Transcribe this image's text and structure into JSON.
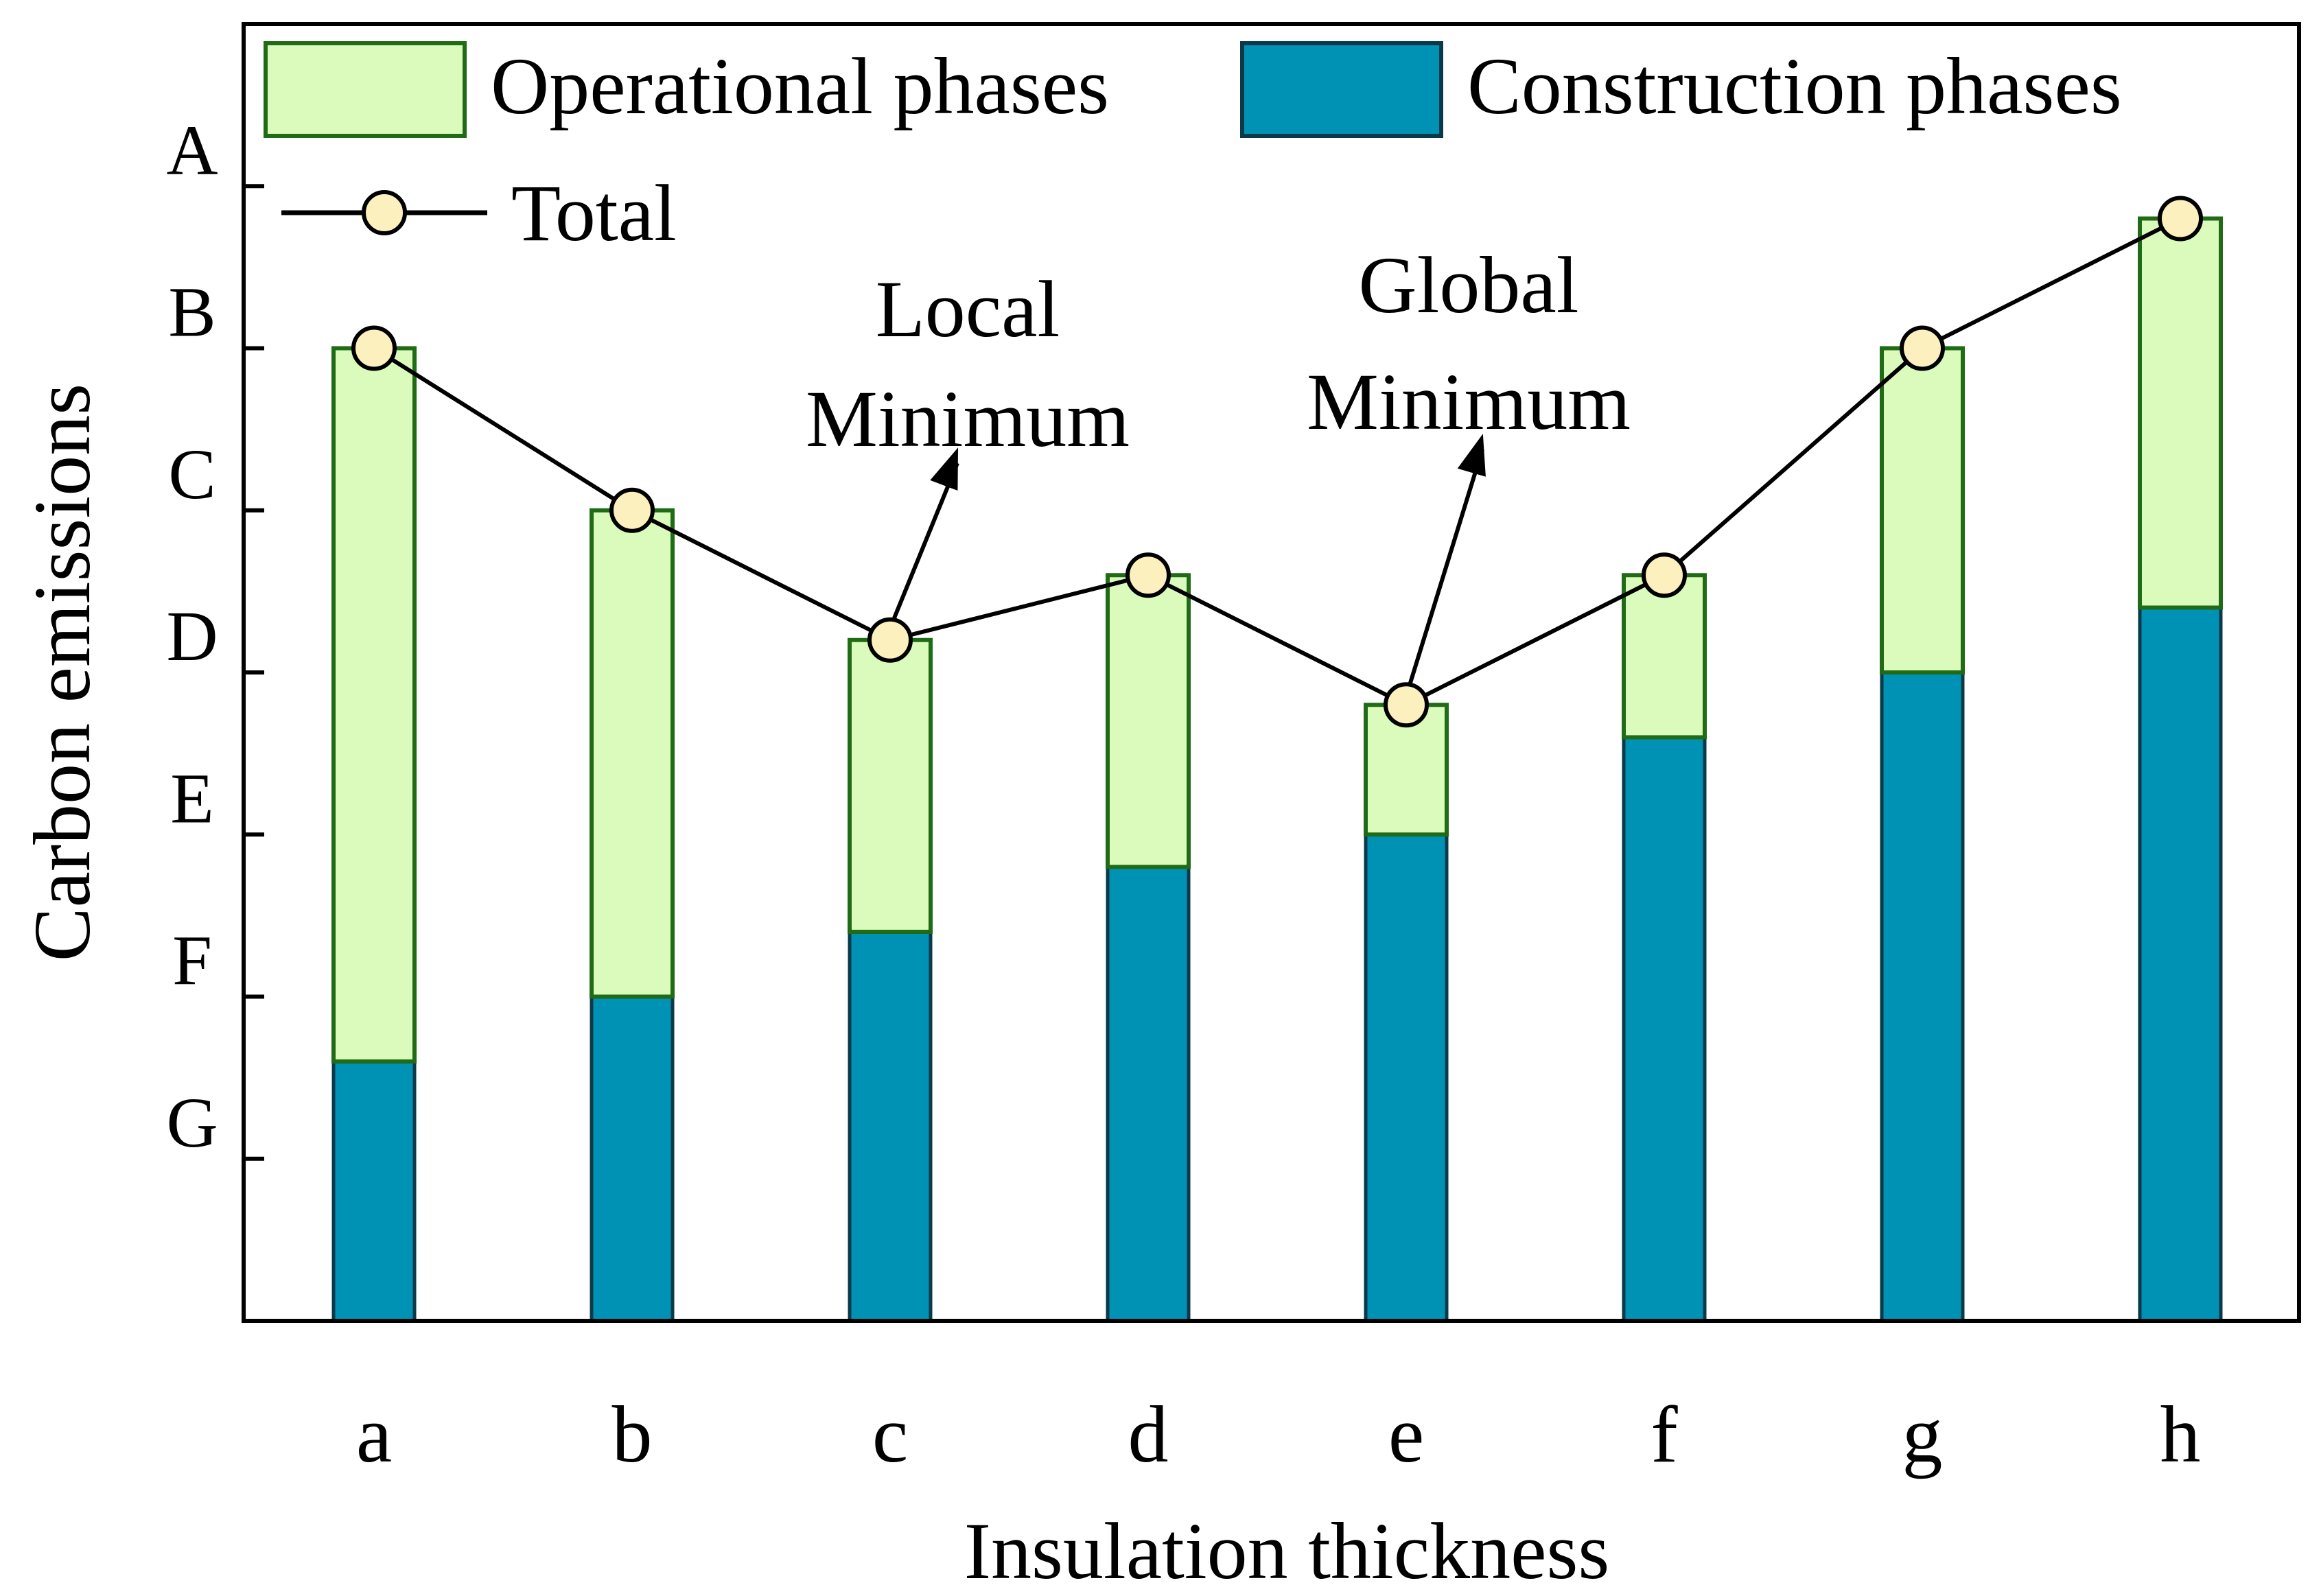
{
  "colors": {
    "operational_fill": "#dafbbc",
    "operational_stroke": "#1f6b16",
    "construction_fill": "#0092b4",
    "construction_stroke": "#0a3a4a",
    "total_line": "#000000",
    "total_marker_fill": "#fdf0bf",
    "axis": "#000000",
    "background": "#ffffff"
  },
  "chart_data": {
    "type": "bar",
    "stacked": true,
    "xlabel": "Insulation thickness",
    "ylabel": "Carbon emissions",
    "categories": [
      "a",
      "b",
      "c",
      "d",
      "e",
      "f",
      "g",
      "h"
    ],
    "ylim": [
      -1,
      7
    ],
    "y_ticks": [
      {
        "value": 6,
        "label": "A"
      },
      {
        "value": 5,
        "label": "B"
      },
      {
        "value": 4,
        "label": "C"
      },
      {
        "value": 3,
        "label": "D"
      },
      {
        "value": 2,
        "label": "E"
      },
      {
        "value": 1,
        "label": "F"
      },
      {
        "value": 0,
        "label": "G"
      }
    ],
    "series": [
      {
        "name": "Construction phases",
        "kind": "bar",
        "values": [
          0.6,
          1.0,
          1.4,
          1.8,
          2.0,
          2.6,
          3.0,
          3.4
        ]
      },
      {
        "name": "Operational phases",
        "kind": "bar",
        "values": [
          4.4,
          3.0,
          1.8,
          1.8,
          0.8,
          1.0,
          2.0,
          2.4
        ]
      },
      {
        "name": "Total",
        "kind": "line",
        "values": [
          5.0,
          4.0,
          3.2,
          3.6,
          2.8,
          3.6,
          5.0,
          5.8
        ]
      }
    ],
    "legend": {
      "position": "top",
      "entries": [
        "Operational phases",
        "Construction phases",
        "Total"
      ]
    },
    "annotations": [
      {
        "lines": [
          "Local",
          "Minimum"
        ],
        "target_category": "c"
      },
      {
        "lines": [
          "Global",
          "Minimum"
        ],
        "target_category": "e"
      }
    ]
  }
}
